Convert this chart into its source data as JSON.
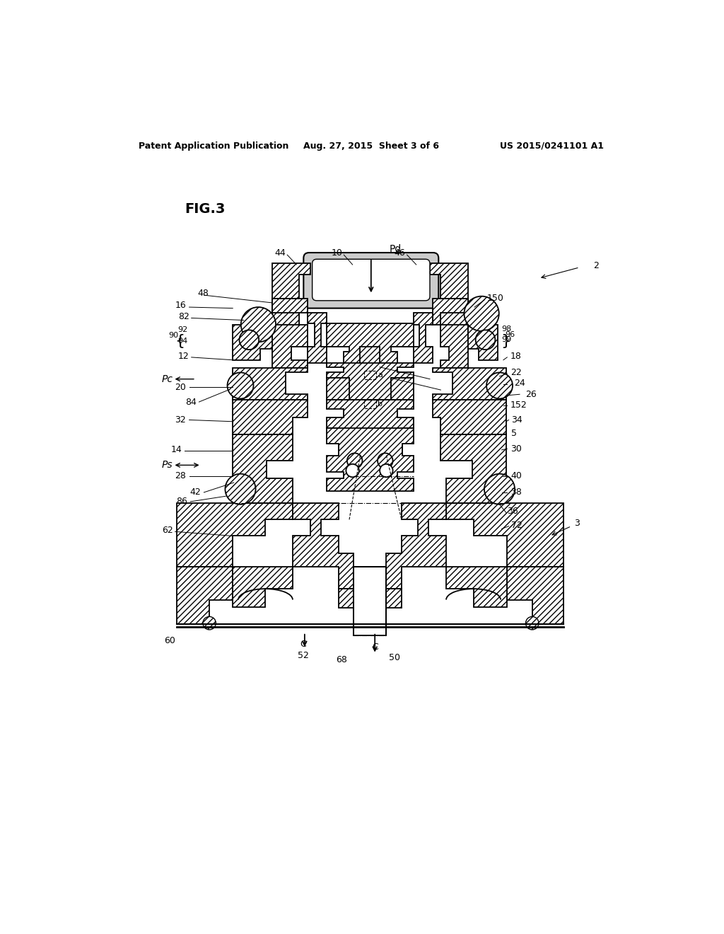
{
  "bg_color": "#ffffff",
  "header_left": "Patent Application Publication",
  "header_mid": "Aug. 27, 2015  Sheet 3 of 6",
  "header_right": "US 2015/0241101 A1",
  "fig_label": "FIG.3",
  "lw": 1.3,
  "hatch": "////"
}
